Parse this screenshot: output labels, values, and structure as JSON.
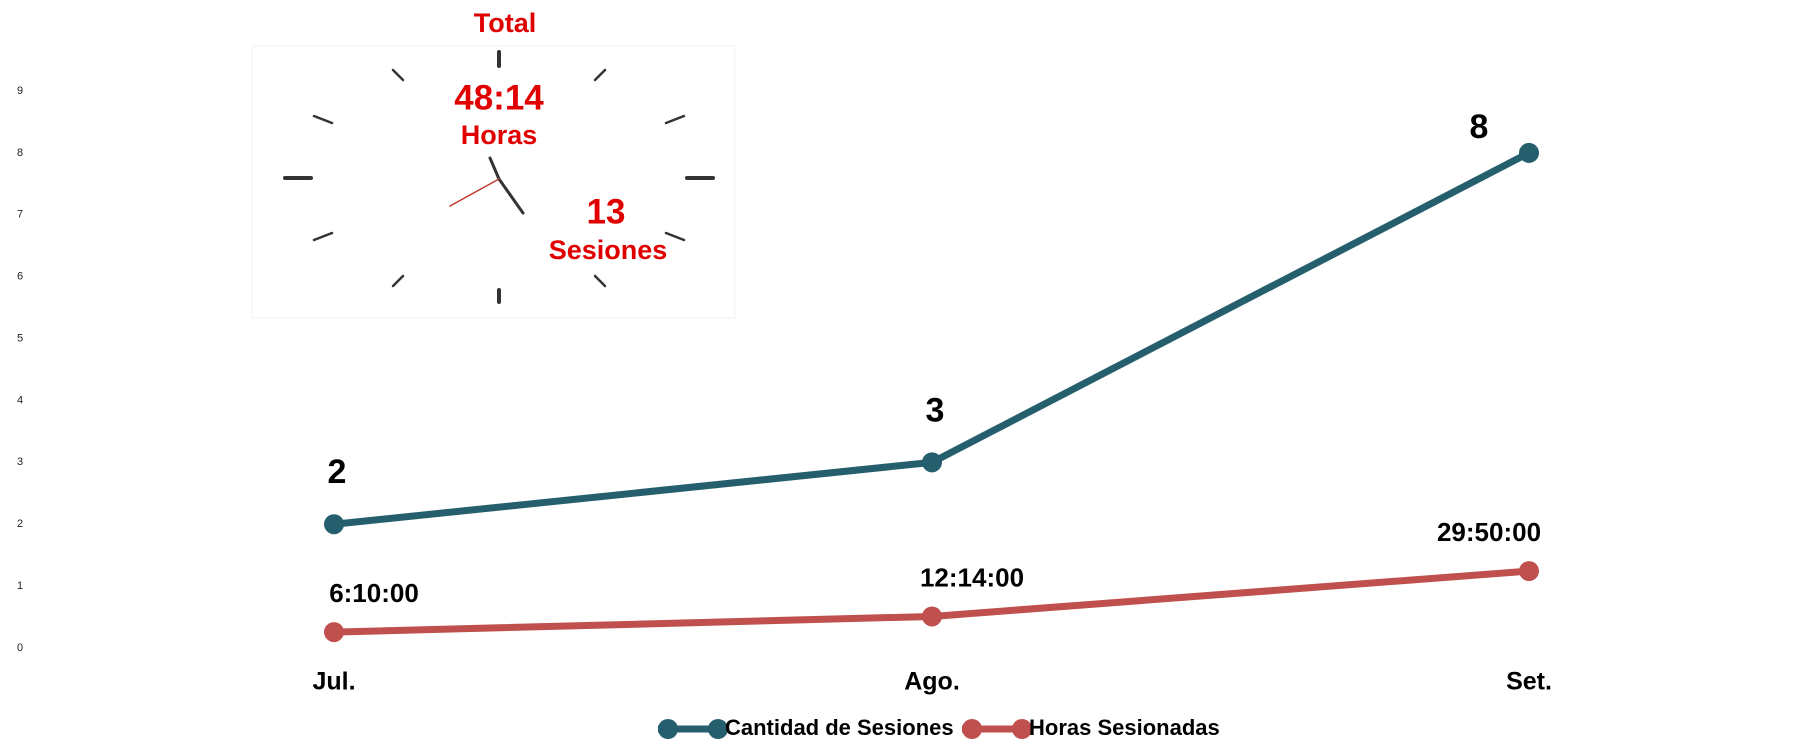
{
  "chart_data": {
    "type": "line",
    "categories": [
      "Jul.",
      "Ago.",
      "Set."
    ],
    "series": [
      {
        "name": "Cantidad de Sesiones",
        "color": "#255e6c",
        "values": [
          2,
          3,
          8
        ]
      },
      {
        "name": "Horas Sesionadas",
        "color": "#c0504d",
        "values": [
          0.2569,
          0.5097,
          1.2431
        ],
        "value_labels": [
          "6:10:00",
          "12:14:00",
          "29:50:00"
        ]
      }
    ],
    "ylim": [
      0,
      9
    ],
    "yticks": [
      0,
      1,
      2,
      3,
      4,
      5,
      6,
      7,
      8,
      9
    ],
    "legend": "bottom",
    "annotations": [
      "Total",
      "48:14",
      "Horas",
      "13",
      "Sesiones"
    ]
  }
}
